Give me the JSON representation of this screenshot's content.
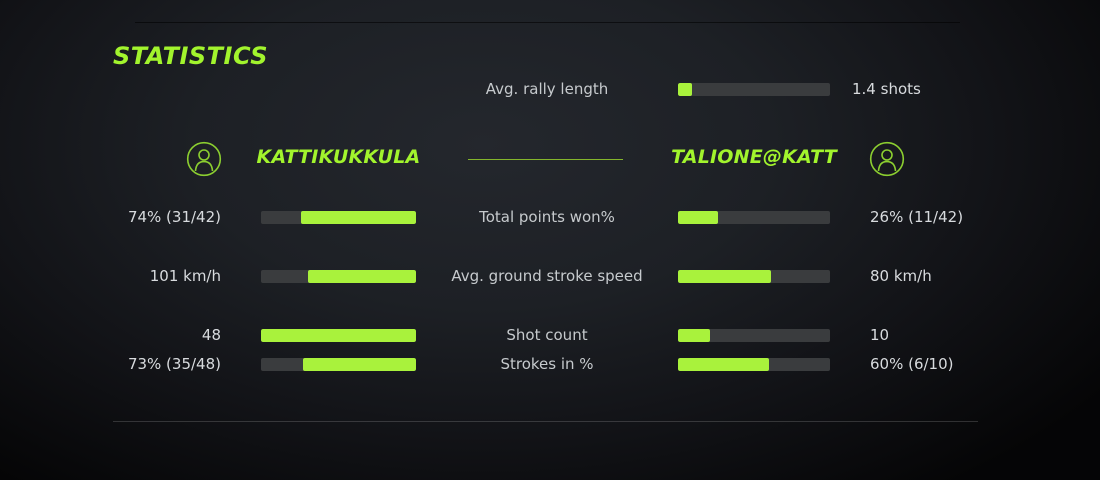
{
  "title": "STATISTICS",
  "colors": {
    "accent_text": "#a2f42d",
    "bar_fill": "#a9f23c",
    "bar_track": "#3a3c3e",
    "icon_stroke": "#8ccf30",
    "divider_green": "#84b52c"
  },
  "players": {
    "left": "KATTIKUKKULA",
    "right": "TALIONE@KATT"
  },
  "rally": {
    "label": "Avg. rally length",
    "value": "1.4 shots",
    "fill_pct": 9
  },
  "rows": [
    {
      "label": "Total points won%",
      "left_value": "74% (31/42)",
      "right_value": "26% (11/42)",
      "left_pct": 74,
      "right_pct": 26
    },
    {
      "label": "Avg. ground stroke speed",
      "left_value": "101 km/h",
      "right_value": "80 km/h",
      "left_pct": 70,
      "right_pct": 61
    },
    {
      "label": "Shot count",
      "left_value": "48",
      "right_value": "10",
      "left_pct": 100,
      "right_pct": 21
    },
    {
      "label": "Strokes in %",
      "left_value": "73% (35/48)",
      "right_value": "60% (6/10)",
      "left_pct": 73,
      "right_pct": 60
    }
  ]
}
